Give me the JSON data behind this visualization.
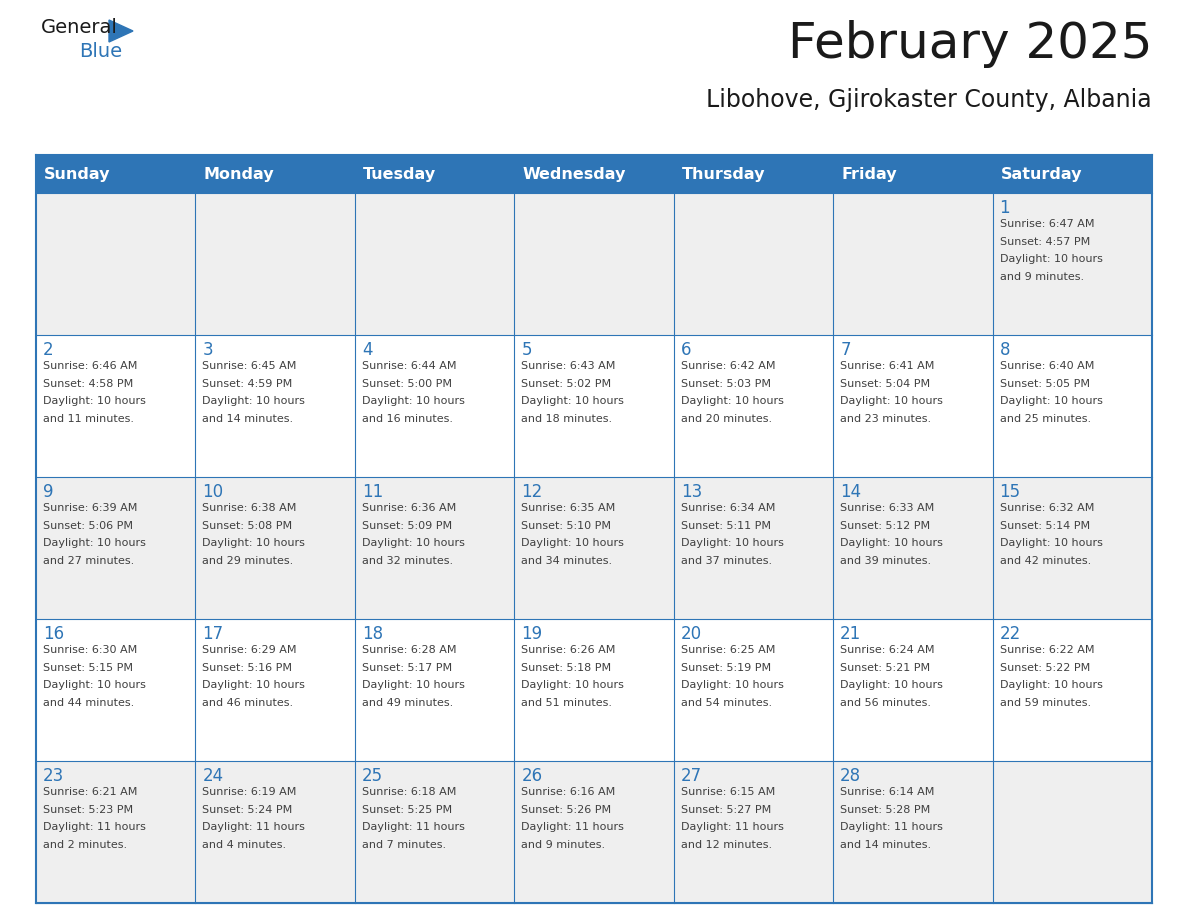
{
  "title": "February 2025",
  "subtitle": "Libohove, Gjirokaster County, Albania",
  "header_bg": "#2E75B6",
  "header_text_color": "#FFFFFF",
  "cell_bg_row0": "#EFEFEF",
  "cell_bg_row1": "#FFFFFF",
  "cell_bg_row2": "#EFEFEF",
  "cell_bg_row3": "#FFFFFF",
  "cell_bg_row4": "#EFEFEF",
  "day_number_color": "#2E75B6",
  "info_text_color": "#404040",
  "border_color": "#2E75B6",
  "days_of_week": [
    "Sunday",
    "Monday",
    "Tuesday",
    "Wednesday",
    "Thursday",
    "Friday",
    "Saturday"
  ],
  "weeks": [
    [
      {
        "day": null,
        "sunrise": null,
        "sunset": null,
        "daylight": null
      },
      {
        "day": null,
        "sunrise": null,
        "sunset": null,
        "daylight": null
      },
      {
        "day": null,
        "sunrise": null,
        "sunset": null,
        "daylight": null
      },
      {
        "day": null,
        "sunrise": null,
        "sunset": null,
        "daylight": null
      },
      {
        "day": null,
        "sunrise": null,
        "sunset": null,
        "daylight": null
      },
      {
        "day": null,
        "sunrise": null,
        "sunset": null,
        "daylight": null
      },
      {
        "day": 1,
        "sunrise": "6:47 AM",
        "sunset": "4:57 PM",
        "daylight": "10 hours\nand 9 minutes."
      }
    ],
    [
      {
        "day": 2,
        "sunrise": "6:46 AM",
        "sunset": "4:58 PM",
        "daylight": "10 hours\nand 11 minutes."
      },
      {
        "day": 3,
        "sunrise": "6:45 AM",
        "sunset": "4:59 PM",
        "daylight": "10 hours\nand 14 minutes."
      },
      {
        "day": 4,
        "sunrise": "6:44 AM",
        "sunset": "5:00 PM",
        "daylight": "10 hours\nand 16 minutes."
      },
      {
        "day": 5,
        "sunrise": "6:43 AM",
        "sunset": "5:02 PM",
        "daylight": "10 hours\nand 18 minutes."
      },
      {
        "day": 6,
        "sunrise": "6:42 AM",
        "sunset": "5:03 PM",
        "daylight": "10 hours\nand 20 minutes."
      },
      {
        "day": 7,
        "sunrise": "6:41 AM",
        "sunset": "5:04 PM",
        "daylight": "10 hours\nand 23 minutes."
      },
      {
        "day": 8,
        "sunrise": "6:40 AM",
        "sunset": "5:05 PM",
        "daylight": "10 hours\nand 25 minutes."
      }
    ],
    [
      {
        "day": 9,
        "sunrise": "6:39 AM",
        "sunset": "5:06 PM",
        "daylight": "10 hours\nand 27 minutes."
      },
      {
        "day": 10,
        "sunrise": "6:38 AM",
        "sunset": "5:08 PM",
        "daylight": "10 hours\nand 29 minutes."
      },
      {
        "day": 11,
        "sunrise": "6:36 AM",
        "sunset": "5:09 PM",
        "daylight": "10 hours\nand 32 minutes."
      },
      {
        "day": 12,
        "sunrise": "6:35 AM",
        "sunset": "5:10 PM",
        "daylight": "10 hours\nand 34 minutes."
      },
      {
        "day": 13,
        "sunrise": "6:34 AM",
        "sunset": "5:11 PM",
        "daylight": "10 hours\nand 37 minutes."
      },
      {
        "day": 14,
        "sunrise": "6:33 AM",
        "sunset": "5:12 PM",
        "daylight": "10 hours\nand 39 minutes."
      },
      {
        "day": 15,
        "sunrise": "6:32 AM",
        "sunset": "5:14 PM",
        "daylight": "10 hours\nand 42 minutes."
      }
    ],
    [
      {
        "day": 16,
        "sunrise": "6:30 AM",
        "sunset": "5:15 PM",
        "daylight": "10 hours\nand 44 minutes."
      },
      {
        "day": 17,
        "sunrise": "6:29 AM",
        "sunset": "5:16 PM",
        "daylight": "10 hours\nand 46 minutes."
      },
      {
        "day": 18,
        "sunrise": "6:28 AM",
        "sunset": "5:17 PM",
        "daylight": "10 hours\nand 49 minutes."
      },
      {
        "day": 19,
        "sunrise": "6:26 AM",
        "sunset": "5:18 PM",
        "daylight": "10 hours\nand 51 minutes."
      },
      {
        "day": 20,
        "sunrise": "6:25 AM",
        "sunset": "5:19 PM",
        "daylight": "10 hours\nand 54 minutes."
      },
      {
        "day": 21,
        "sunrise": "6:24 AM",
        "sunset": "5:21 PM",
        "daylight": "10 hours\nand 56 minutes."
      },
      {
        "day": 22,
        "sunrise": "6:22 AM",
        "sunset": "5:22 PM",
        "daylight": "10 hours\nand 59 minutes."
      }
    ],
    [
      {
        "day": 23,
        "sunrise": "6:21 AM",
        "sunset": "5:23 PM",
        "daylight": "11 hours\nand 2 minutes."
      },
      {
        "day": 24,
        "sunrise": "6:19 AM",
        "sunset": "5:24 PM",
        "daylight": "11 hours\nand 4 minutes."
      },
      {
        "day": 25,
        "sunrise": "6:18 AM",
        "sunset": "5:25 PM",
        "daylight": "11 hours\nand 7 minutes."
      },
      {
        "day": 26,
        "sunrise": "6:16 AM",
        "sunset": "5:26 PM",
        "daylight": "11 hours\nand 9 minutes."
      },
      {
        "day": 27,
        "sunrise": "6:15 AM",
        "sunset": "5:27 PM",
        "daylight": "11 hours\nand 12 minutes."
      },
      {
        "day": 28,
        "sunrise": "6:14 AM",
        "sunset": "5:28 PM",
        "daylight": "11 hours\nand 14 minutes."
      },
      {
        "day": null,
        "sunrise": null,
        "sunset": null,
        "daylight": null
      }
    ]
  ],
  "row_bg_colors": [
    "#EFEFEF",
    "#FFFFFF",
    "#EFEFEF",
    "#FFFFFF",
    "#EFEFEF"
  ]
}
